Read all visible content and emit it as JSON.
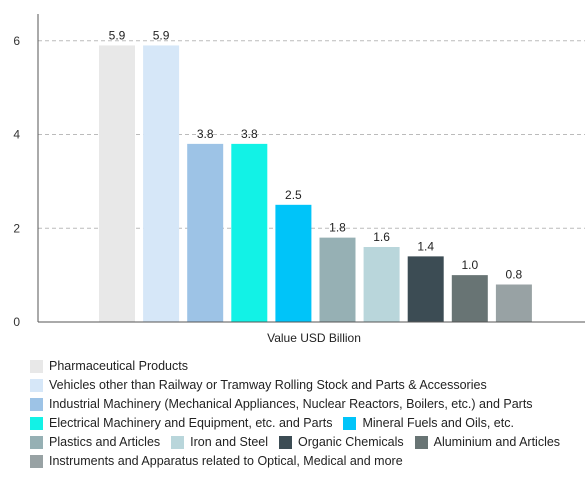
{
  "chart_data": {
    "type": "bar",
    "title": "",
    "xlabel": "Value USD Billion",
    "ylabel": "",
    "ylim": [
      0,
      6.4
    ],
    "yticks": [
      0,
      2,
      4,
      6
    ],
    "grid": true,
    "legend_position": "bottom",
    "categories": [
      "Pharmaceutical Products",
      "Vehicles other than Railway or Tramway Rolling Stock and Parts & Accessories",
      "Industrial Machinery (Mechanical Appliances, Nuclear Reactors, Boilers, etc.) and Parts",
      "Electrical Machinery and Equipment, etc. and Parts",
      "Mineral Fuels and Oils, etc.",
      "Plastics and Articles",
      "Iron and Steel",
      "Organic Chemicals",
      "Aluminium and Articles",
      "Instruments and Apparatus related to Optical, Medical and more"
    ],
    "values": [
      5.9,
      5.9,
      3.8,
      3.8,
      2.5,
      1.8,
      1.6,
      1.4,
      1.0,
      0.8
    ],
    "value_labels": [
      "5.9",
      "5.9",
      "3.8",
      "3.8",
      "2.5",
      "1.8",
      "1.6",
      "1.4",
      "1.0",
      "0.8"
    ],
    "colors": [
      "#e8e8e8",
      "#d6e7f8",
      "#9dc3e6",
      "#12f2e6",
      "#00c4f9",
      "#96b0b4",
      "#b9d6db",
      "#3c4c54",
      "#687474",
      "#98a2a4"
    ]
  },
  "legend_rows": [
    [
      0
    ],
    [
      1
    ],
    [
      2
    ],
    [
      3,
      4
    ],
    [
      5,
      6,
      7,
      8
    ],
    [
      9
    ]
  ]
}
